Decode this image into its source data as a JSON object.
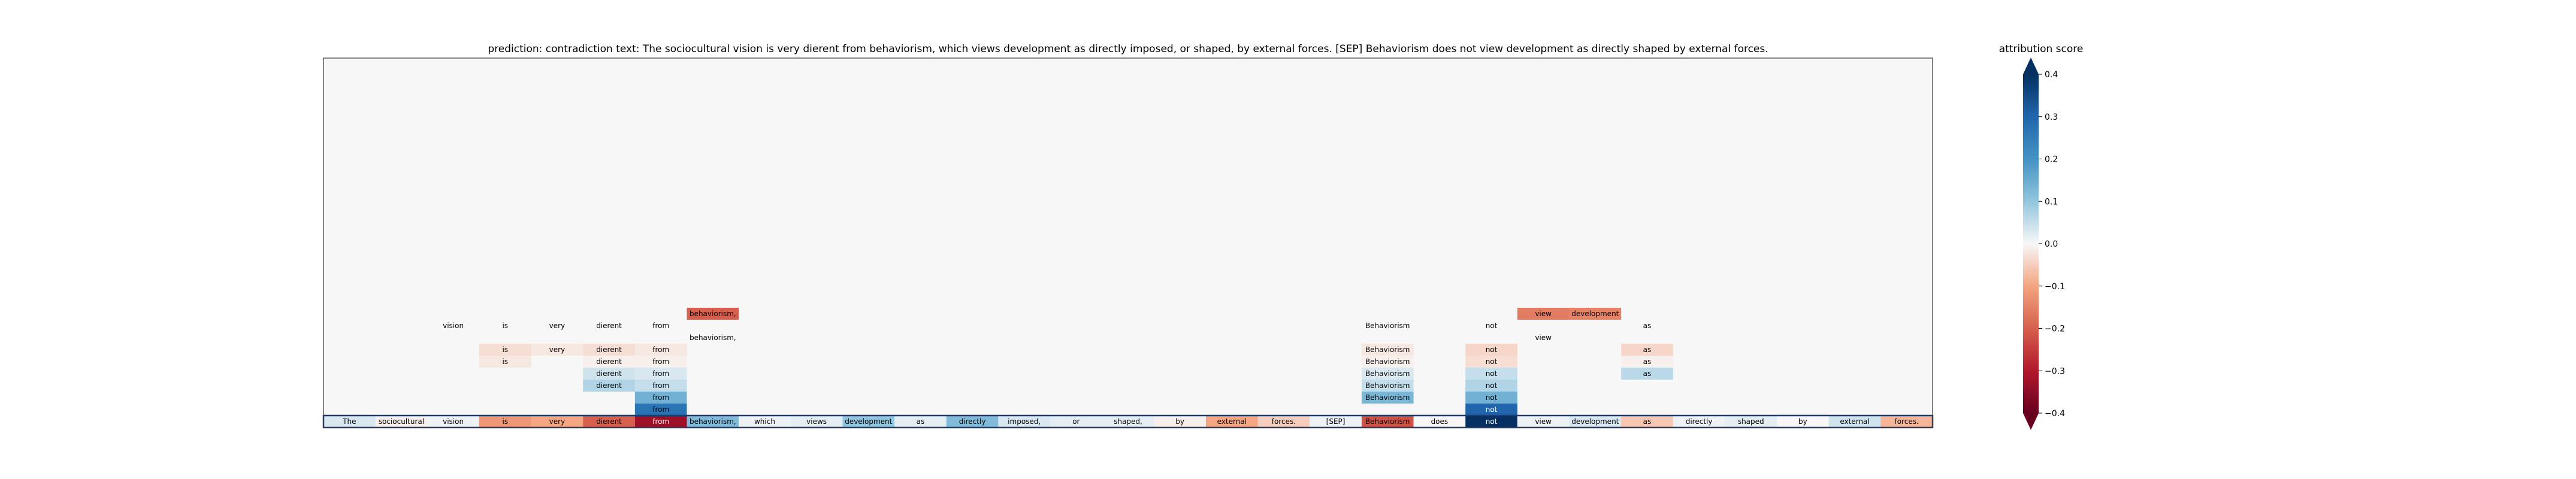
{
  "chart_data": {
    "type": "heatmap",
    "title": "prediction:  contradiction     text:  The sociocultural vision is very dierent from behaviorism, which views development as directly imposed, or shaped, by external forces. [SEP] Behaviorism does not view development as directly shaped by external forces.",
    "colorbar": {
      "label": "attribution score",
      "range": [
        -0.4,
        0.4
      ],
      "ticks": [
        "0.4",
        "0.3",
        "0.2",
        "0.1",
        "0.0",
        "−0.1",
        "−0.2",
        "−0.3",
        "−0.4"
      ],
      "extend": "both",
      "colormap": "RdBu"
    },
    "background": "#f6f7f6",
    "tokens": [
      {
        "text": "The",
        "score": 0.03
      },
      {
        "text": "sociocultural",
        "score": -0.01
      },
      {
        "text": "vision",
        "score": 0.01
      },
      {
        "text": "is",
        "score": -0.12
      },
      {
        "text": "very",
        "score": -0.1
      },
      {
        "text": "dierent",
        "score": -0.2
      },
      {
        "text": "from",
        "score": -0.33
      },
      {
        "text": "behaviorism,",
        "score": 0.12
      },
      {
        "text": "which",
        "score": 0.01
      },
      {
        "text": "views",
        "score": 0.02
      },
      {
        "text": "development",
        "score": 0.1
      },
      {
        "text": "as",
        "score": 0.02
      },
      {
        "text": "directly",
        "score": 0.12
      },
      {
        "text": "imposed,",
        "score": 0.03
      },
      {
        "text": "or",
        "score": 0.02
      },
      {
        "text": "shaped,",
        "score": 0.02
      },
      {
        "text": "by",
        "score": -0.01
      },
      {
        "text": "external",
        "score": -0.1
      },
      {
        "text": "forces.",
        "score": -0.05
      },
      {
        "text": "[SEP]",
        "score": 0.01
      },
      {
        "text": "Behaviorism",
        "score": -0.22
      },
      {
        "text": "does",
        "score": 0.0
      },
      {
        "text": "not",
        "score": 0.42
      },
      {
        "text": "view",
        "score": 0.01
      },
      {
        "text": "development",
        "score": 0.03
      },
      {
        "text": "as",
        "score": -0.06
      },
      {
        "text": "directly",
        "score": 0.01
      },
      {
        "text": "shaped",
        "score": 0.02
      },
      {
        "text": "by",
        "score": 0.0
      },
      {
        "text": "external",
        "score": 0.04
      },
      {
        "text": "forces.",
        "score": -0.08
      }
    ],
    "cells": [
      {
        "text": "behaviorism,",
        "col": 7,
        "row": 9,
        "score": -0.2
      },
      {
        "text": "view",
        "col": 23,
        "row": 9,
        "score": -0.16
      },
      {
        "text": "development",
        "col": 24,
        "row": 9,
        "score": -0.15
      },
      {
        "text": "vision",
        "col": 2,
        "row": 8,
        "score": 0.0
      },
      {
        "text": "is",
        "col": 3,
        "row": 8,
        "score": 0.0
      },
      {
        "text": "very",
        "col": 4,
        "row": 8,
        "score": 0.0
      },
      {
        "text": "dierent",
        "col": 5,
        "row": 8,
        "score": 0.0
      },
      {
        "text": "from",
        "col": 6,
        "row": 8,
        "score": 0.0
      },
      {
        "text": "Behaviorism",
        "col": 20,
        "row": 8,
        "score": 0.0
      },
      {
        "text": "not",
        "col": 22,
        "row": 8,
        "score": 0.0
      },
      {
        "text": "as",
        "col": 25,
        "row": 8,
        "score": 0.0
      },
      {
        "text": "behaviorism,",
        "col": 7,
        "row": 7,
        "score": 0.0
      },
      {
        "text": "view",
        "col": 23,
        "row": 7,
        "score": 0.0
      },
      {
        "text": "is",
        "col": 3,
        "row": 6,
        "score": -0.03
      },
      {
        "text": "very",
        "col": 4,
        "row": 6,
        "score": -0.02
      },
      {
        "text": "dierent",
        "col": 5,
        "row": 6,
        "score": -0.03
      },
      {
        "text": "from",
        "col": 6,
        "row": 6,
        "score": -0.02
      },
      {
        "text": "Behaviorism",
        "col": 20,
        "row": 6,
        "score": -0.02
      },
      {
        "text": "not",
        "col": 22,
        "row": 6,
        "score": -0.04
      },
      {
        "text": "as",
        "col": 25,
        "row": 6,
        "score": -0.04
      },
      {
        "text": "is",
        "col": 3,
        "row": 5,
        "score": -0.02
      },
      {
        "text": "dierent",
        "col": 5,
        "row": 5,
        "score": -0.01
      },
      {
        "text": "from",
        "col": 6,
        "row": 5,
        "score": -0.01
      },
      {
        "text": "Behaviorism",
        "col": 20,
        "row": 5,
        "score": -0.01
      },
      {
        "text": "not",
        "col": 22,
        "row": 5,
        "score": -0.03
      },
      {
        "text": "as",
        "col": 25,
        "row": 5,
        "score": -0.01
      },
      {
        "text": "dierent",
        "col": 5,
        "row": 4,
        "score": 0.04
      },
      {
        "text": "from",
        "col": 6,
        "row": 4,
        "score": 0.03
      },
      {
        "text": "Behaviorism",
        "col": 20,
        "row": 4,
        "score": 0.03
      },
      {
        "text": "not",
        "col": 22,
        "row": 4,
        "score": 0.05
      },
      {
        "text": "as",
        "col": 25,
        "row": 4,
        "score": 0.06
      },
      {
        "text": "dierent",
        "col": 5,
        "row": 3,
        "score": 0.07
      },
      {
        "text": "from",
        "col": 6,
        "row": 3,
        "score": 0.05
      },
      {
        "text": "Behaviorism",
        "col": 20,
        "row": 3,
        "score": 0.05
      },
      {
        "text": "not",
        "col": 22,
        "row": 3,
        "score": 0.07
      },
      {
        "text": "from",
        "col": 6,
        "row": 2,
        "score": 0.14
      },
      {
        "text": "Behaviorism",
        "col": 20,
        "row": 2,
        "score": 0.13
      },
      {
        "text": "not",
        "col": 22,
        "row": 2,
        "score": 0.14
      },
      {
        "text": "from",
        "col": 6,
        "row": 1,
        "score": 0.27
      },
      {
        "text": "not",
        "col": 22,
        "row": 1,
        "score": 0.3
      }
    ]
  }
}
